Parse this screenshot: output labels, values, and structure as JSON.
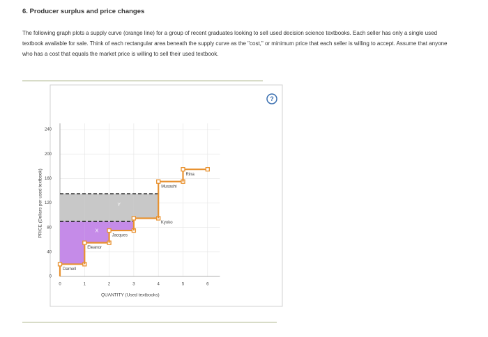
{
  "header": {
    "title": "6. Producer surplus and price changes"
  },
  "paragraph": "The following graph plots a supply curve (orange line) for a group of recent graduates looking to sell used decision science textbooks. Each seller has only a single used textbook available for sale. Think of each rectangular area beneath the supply curve as the \"cost,\" or minimum price that each seller is willing to accept. Assume that anyone who has a cost that equals the market price is willing to sell their used textbook.",
  "help": "?",
  "chart_data": {
    "type": "step",
    "xlabel": "QUANTITY (Used textbooks)",
    "ylabel": "PRICE (Dollars per used textbook)",
    "categories": [
      "Darnell",
      "Eleanor",
      "Jacques",
      "Kyoko",
      "Musashi",
      "Rina"
    ],
    "values": [
      20,
      55,
      75,
      95,
      155,
      175
    ],
    "color": "#e8912f",
    "price_lines": [
      135,
      90
    ],
    "area_labels": [
      "Y",
      "X"
    ],
    "area_colors": [
      "#c8c8c8",
      "#c58be8"
    ],
    "xlim": [
      0,
      6.5
    ],
    "xticks": [
      0,
      1,
      2,
      3,
      4,
      5,
      6
    ],
    "ylim": [
      0,
      250
    ],
    "yticks": [
      0,
      40,
      80,
      120,
      160,
      200,
      240
    ],
    "grid": true
  }
}
